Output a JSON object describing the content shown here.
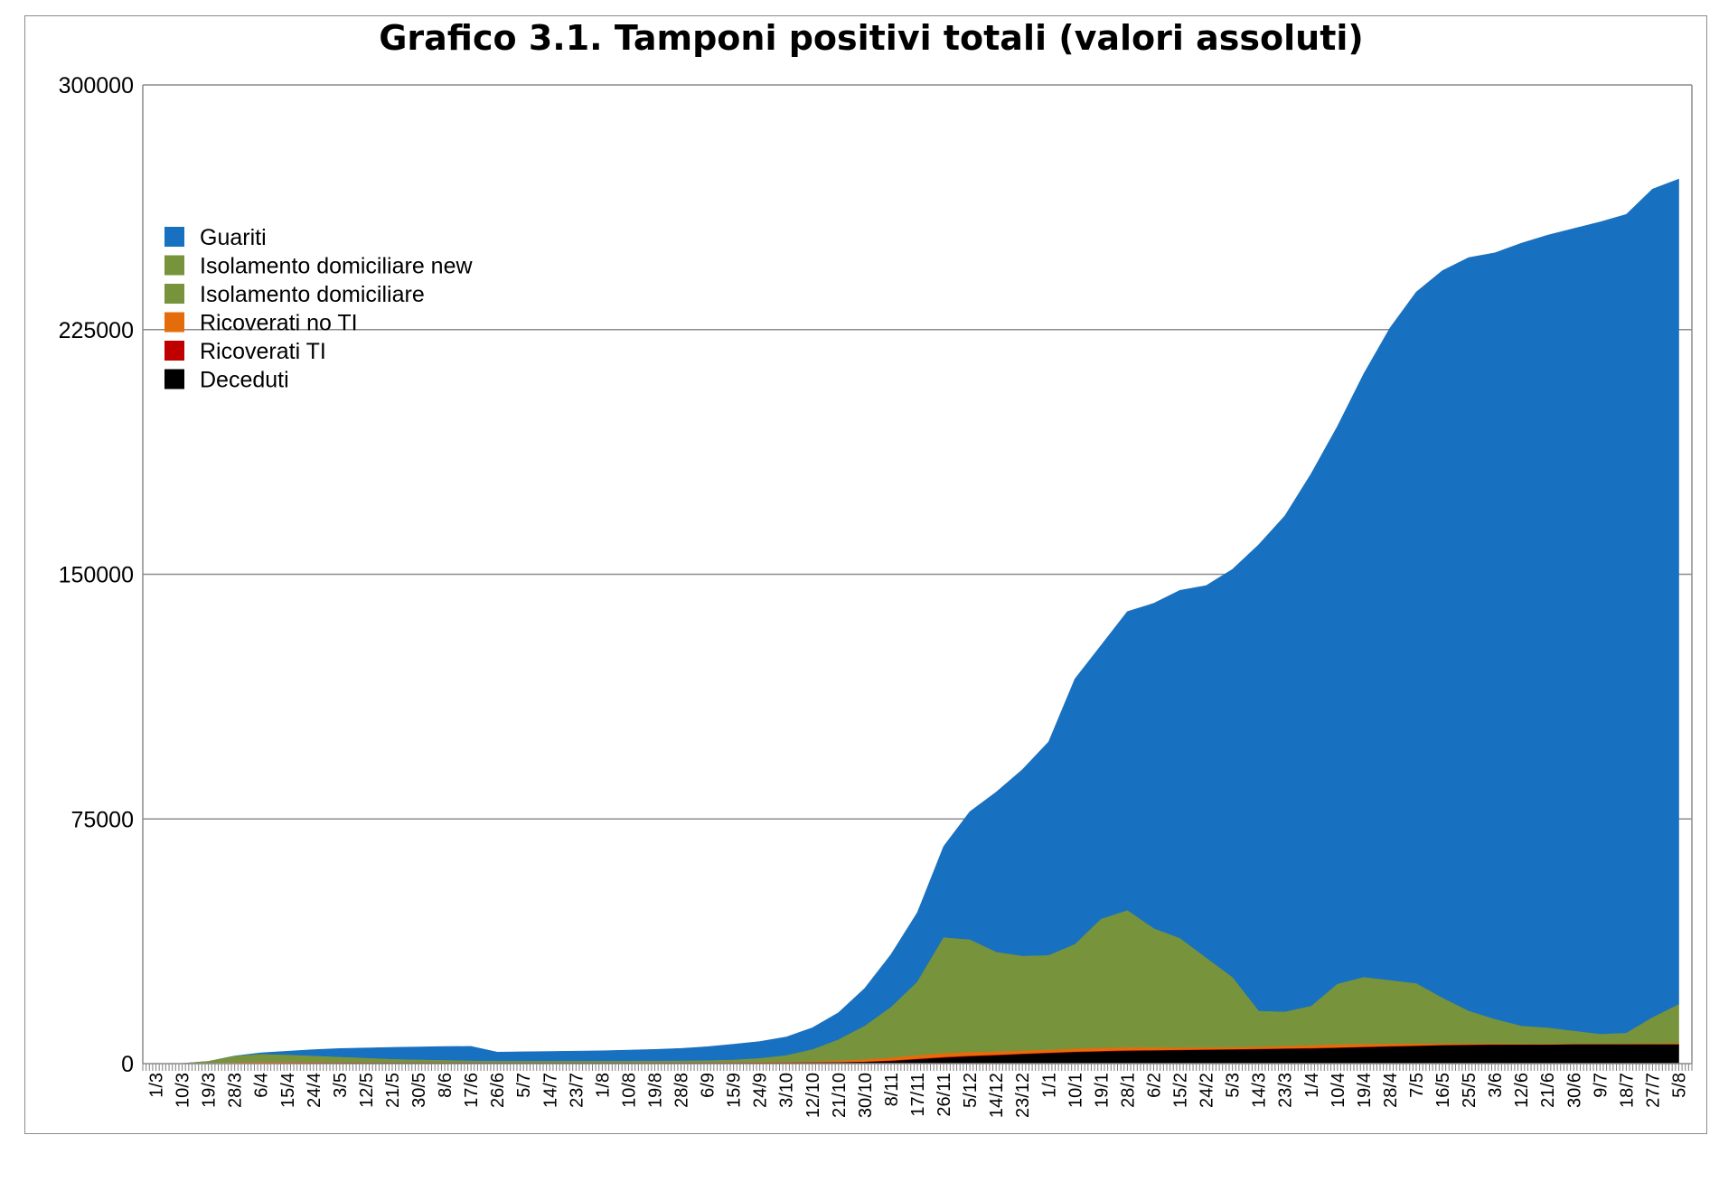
{
  "chart_data": {
    "type": "area",
    "stacked": true,
    "title": "Grafico 3.1. Tamponi positivi totali (valori assoluti)",
    "xlabel": "",
    "ylabel": "",
    "ylim": [
      0,
      300000
    ],
    "yticks": [
      0,
      75000,
      150000,
      225000,
      300000
    ],
    "grid": "horizontal",
    "legend_position": "top-left",
    "x_tick_labels": [
      "1/3",
      "10/3",
      "19/3",
      "28/3",
      "6/4",
      "15/4",
      "24/4",
      "3/5",
      "12/5",
      "21/5",
      "30/5",
      "8/6",
      "17/6",
      "26/6",
      "5/7",
      "14/7",
      "23/7",
      "1/8",
      "10/8",
      "19/8",
      "28/8",
      "6/9",
      "15/9",
      "24/9",
      "3/10",
      "12/10",
      "21/10",
      "30/10",
      "8/11",
      "17/11",
      "26/11",
      "5/12",
      "14/12",
      "23/12",
      "1/1",
      "10/1",
      "19/1",
      "28/1",
      "6/2",
      "15/2",
      "24/2",
      "5/3",
      "14/3",
      "23/3",
      "1/4",
      "10/4",
      "19/4",
      "28/4",
      "7/5",
      "16/5",
      "25/5",
      "3/6",
      "12/6",
      "21/6",
      "30/6",
      "9/7",
      "18/7",
      "27/7",
      "5/8"
    ],
    "series": [
      {
        "name": "Deceduti",
        "color": "#000000",
        "values": [
          0,
          0,
          0,
          10,
          40,
          90,
          130,
          150,
          160,
          170,
          170,
          180,
          180,
          180,
          180,
          180,
          180,
          180,
          180,
          180,
          180,
          180,
          180,
          190,
          200,
          220,
          260,
          400,
          700,
          1200,
          1700,
          2100,
          2400,
          2800,
          3100,
          3400,
          3600,
          3800,
          3900,
          4000,
          4100,
          4200,
          4300,
          4400,
          4500,
          4700,
          4900,
          5100,
          5300,
          5500,
          5600,
          5700,
          5700,
          5700,
          5800,
          5800,
          5800,
          5800,
          5800
        ]
      },
      {
        "name": "Ricoverati TI",
        "color": "#c00000",
        "values": [
          0,
          2,
          10,
          40,
          60,
          50,
          40,
          30,
          20,
          10,
          8,
          5,
          4,
          3,
          3,
          3,
          3,
          3,
          3,
          3,
          5,
          8,
          10,
          15,
          20,
          30,
          60,
          100,
          150,
          180,
          200,
          190,
          170,
          150,
          140,
          150,
          160,
          150,
          130,
          110,
          100,
          100,
          110,
          130,
          150,
          160,
          150,
          130,
          100,
          80,
          60,
          40,
          30,
          20,
          15,
          15,
          15,
          20,
          30
        ]
      },
      {
        "name": "Ricoverati no TI",
        "color": "#e46c0a",
        "values": [
          0,
          10,
          80,
          200,
          300,
          250,
          200,
          150,
          120,
          100,
          80,
          60,
          50,
          40,
          40,
          40,
          40,
          40,
          50,
          60,
          80,
          100,
          130,
          170,
          220,
          320,
          500,
          700,
          900,
          1100,
          1200,
          1150,
          1050,
          950,
          900,
          950,
          1000,
          950,
          850,
          750,
          650,
          600,
          650,
          800,
          900,
          950,
          850,
          750,
          600,
          500,
          400,
          300,
          250,
          200,
          170,
          170,
          200,
          250,
          300
        ]
      },
      {
        "name": "Isolamento domiciliare",
        "color": "#77933c",
        "values": [
          0,
          50,
          600,
          2000,
          2400,
          2200,
          1900,
          1600,
          1300,
          1000,
          850,
          700,
          550,
          500,
          500,
          500,
          500,
          500,
          500,
          500,
          500,
          500,
          500,
          500,
          500,
          500,
          500,
          500,
          500,
          500,
          500,
          500,
          500,
          500,
          500,
          500,
          500,
          500,
          500,
          500,
          500,
          500,
          500,
          500,
          500,
          500,
          500,
          500,
          500,
          500,
          500,
          500,
          500,
          500,
          500,
          500,
          500,
          500,
          500
        ]
      },
      {
        "name": "Isolamento domiciliare new",
        "color": "#77933c",
        "values": [
          0,
          0,
          0,
          0,
          0,
          0,
          0,
          0,
          0,
          0,
          0,
          0,
          0,
          0,
          0,
          0,
          0,
          0,
          0,
          0,
          0,
          100,
          300,
          700,
          1500,
          3200,
          6000,
          9800,
          15000,
          22000,
          35000,
          34000,
          30000,
          28500,
          28500,
          31500,
          39000,
          41500,
          36000,
          33000,
          27000,
          21000,
          10500,
          10000,
          11500,
          18000,
          20000,
          19000,
          18000,
          13500,
          9500,
          7000,
          5000,
          4500,
          3500,
          2500,
          2800,
          7500,
          11500
        ]
      },
      {
        "name": "Guariti",
        "color": "#1870c0",
        "values": [
          0,
          0,
          0,
          100,
          500,
          1200,
          2000,
          2700,
          3200,
          3700,
          4000,
          4300,
          4500,
          2800,
          2900,
          3000,
          3100,
          3200,
          3400,
          3600,
          3900,
          4300,
          4800,
          5200,
          5700,
          6700,
          8300,
          11600,
          16200,
          21300,
          28000,
          39300,
          49100,
          57200,
          65500,
          81400,
          84000,
          91700,
          99700,
          106700,
          114200,
          125100,
          143000,
          152100,
          163300,
          171000,
          185000,
          200000,
          212000,
          223000,
          231000,
          235000,
          240000,
          243000,
          246000,
          249000,
          251000,
          254000,
          253000
        ]
      }
    ],
    "legend": [
      {
        "label": "Guariti",
        "color": "#1870c0"
      },
      {
        "label": "Isolamento domiciliare new",
        "color": "#77933c"
      },
      {
        "label": "Isolamento domiciliare",
        "color": "#77933c"
      },
      {
        "label": "Ricoverati no TI",
        "color": "#e46c0a"
      },
      {
        "label": "Ricoverati TI",
        "color": "#c00000"
      },
      {
        "label": "Deceduti",
        "color": "#000000"
      }
    ]
  }
}
